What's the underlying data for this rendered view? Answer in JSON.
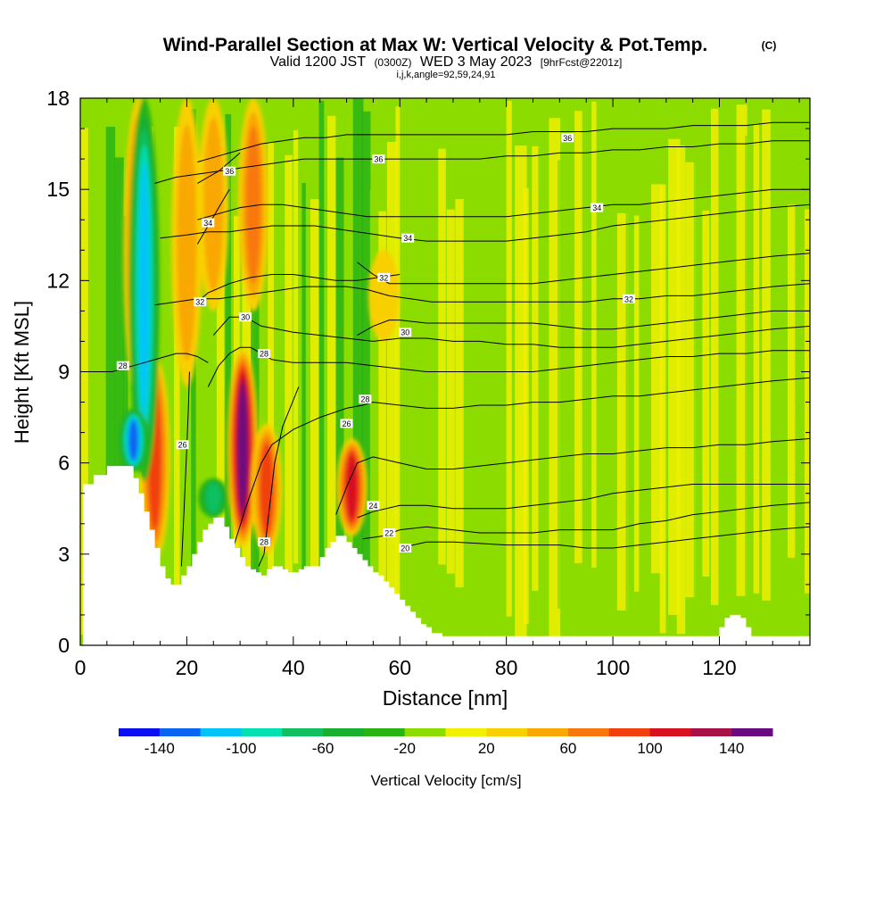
{
  "header": {
    "title": "Wind-Parallel Section at Max W: Vertical Velocity & Pot.Temp.",
    "copyright": "(C)",
    "valid_prefix": "Valid 1200 JST",
    "valid_zulu": "(0300Z)",
    "valid_date": "WED 3 May 2023",
    "forecast": "[9hrFcst@2201z]",
    "section_params": "i,j,k,angle=92,59,24,91"
  },
  "chart_data": {
    "type": "heatmap",
    "title": "Wind-Parallel Section at Max W: Vertical Velocity & Pot.Temp.",
    "xlabel": "Distance [nm]",
    "ylabel": "Height [Kft MSL]",
    "xlim": [
      0,
      137
    ],
    "ylim": [
      0,
      18
    ],
    "x_ticks": [
      "0",
      "20",
      "40",
      "60",
      "80",
      "100",
      "120"
    ],
    "y_ticks": [
      "0",
      "3",
      "6",
      "9",
      "12",
      "15",
      "18"
    ],
    "grid": false,
    "colorbar": {
      "label": "Vertical Velocity [cm/s]",
      "tick_labels": [
        "-140",
        "-100",
        "-60",
        "-20",
        "20",
        "60",
        "100",
        "140"
      ],
      "bounds": [
        -160,
        -140,
        -120,
        -100,
        -80,
        -60,
        -40,
        -20,
        0,
        20,
        40,
        60,
        80,
        100,
        120,
        140,
        160
      ],
      "colors": [
        "#0a10f0",
        "#0a66f0",
        "#00c4f8",
        "#00e0b0",
        "#10c060",
        "#18b030",
        "#2ab414",
        "#8cdc00",
        "#f0f000",
        "#f8d000",
        "#f8a800",
        "#f87810",
        "#f04010",
        "#d81020",
        "#a81048",
        "#6a0a80"
      ]
    },
    "background_color": "#8cdc00",
    "updraft_cores": [
      {
        "x": 11,
        "y_bottom": 7.8,
        "y_top": 18,
        "value": 90
      },
      {
        "x": 14,
        "y_bottom": 2.8,
        "y_top": 9.5,
        "value": 80
      },
      {
        "x": 20,
        "y_bottom": 8.5,
        "y_top": 18,
        "value": 40
      },
      {
        "x": 25,
        "y_bottom": 11,
        "y_top": 18,
        "value": 50
      },
      {
        "x": 30.5,
        "y_bottom": 3.2,
        "y_top": 9.8,
        "value": 150
      },
      {
        "x": 32.5,
        "y_bottom": 11,
        "y_top": 18,
        "value": 60
      },
      {
        "x": 35,
        "y_bottom": 3.0,
        "y_top": 7.3,
        "value": 80
      },
      {
        "x": 51,
        "y_bottom": 3.6,
        "y_top": 6.8,
        "value": 110
      },
      {
        "x": 57,
        "y_bottom": 10,
        "y_top": 13,
        "value": 30
      }
    ],
    "downdraft_cores": [
      {
        "x": 12,
        "y_bottom": 5.4,
        "y_top": 18,
        "value": -100
      },
      {
        "x": 10,
        "y_bottom": 5.7,
        "y_top": 7.8,
        "value": -130
      },
      {
        "x": 25,
        "y_bottom": 4.2,
        "y_top": 5.5,
        "value": -60
      }
    ],
    "terrain": {
      "x": [
        0,
        0.5,
        2.5,
        5,
        7,
        10,
        11,
        12,
        13,
        14,
        15,
        16,
        17,
        18,
        19,
        20,
        21,
        22,
        23,
        24,
        25,
        26,
        27,
        28,
        29,
        30,
        31,
        32,
        33,
        34,
        35,
        36,
        37,
        38,
        39,
        40,
        41,
        42,
        43,
        44,
        45,
        46,
        47,
        48,
        49,
        50,
        51,
        52,
        53,
        54,
        55,
        56,
        57,
        58,
        59,
        60,
        61,
        62,
        63,
        64,
        65,
        66,
        68,
        70,
        71,
        118,
        119,
        120,
        121,
        122,
        123,
        124,
        125,
        126,
        127,
        128,
        130,
        137
      ],
      "y": [
        0,
        5.3,
        5.6,
        5.9,
        5.9,
        5.5,
        5.0,
        4.4,
        3.8,
        3.2,
        2.6,
        2.2,
        2.0,
        2.0,
        2.3,
        2.6,
        3.0,
        3.4,
        3.8,
        4.0,
        4.2,
        4.2,
        3.9,
        3.5,
        3.2,
        2.9,
        2.6,
        2.5,
        2.4,
        2.3,
        2.5,
        2.6,
        2.6,
        2.5,
        2.4,
        2.4,
        2.5,
        2.6,
        2.6,
        2.6,
        2.9,
        3.2,
        3.4,
        3.6,
        3.6,
        3.4,
        3.2,
        3.0,
        2.8,
        2.6,
        2.4,
        2.3,
        2.1,
        1.9,
        1.7,
        1.5,
        1.3,
        1.1,
        0.9,
        0.7,
        0.6,
        0.4,
        0.3,
        0.3,
        0.3,
        0.3,
        0.3,
        0.6,
        0.9,
        1.0,
        1.0,
        0.9,
        0.6,
        0.3,
        0.3,
        0.3,
        0.3,
        0.3
      ],
      "color": "#ffffff"
    },
    "isentropes": [
      {
        "label": "20",
        "x": [
          60,
          65,
          70,
          75,
          80,
          85,
          90,
          95,
          100,
          105,
          110,
          115,
          120,
          125,
          130,
          137
        ],
        "y": [
          3.2,
          3.4,
          3.4,
          3.35,
          3.3,
          3.3,
          3.3,
          3.2,
          3.2,
          3.3,
          3.4,
          3.5,
          3.6,
          3.7,
          3.8,
          3.9
        ],
        "label_at": [
          61,
          3.2
        ]
      },
      {
        "label": "22",
        "x": [
          53,
          57,
          60,
          65,
          70,
          75,
          80,
          85,
          90,
          95,
          100,
          105,
          110,
          115,
          120,
          125,
          130,
          137
        ],
        "y": [
          3.5,
          3.6,
          3.8,
          3.9,
          3.8,
          3.7,
          3.7,
          3.7,
          3.8,
          3.8,
          3.8,
          4.0,
          4.1,
          4.3,
          4.4,
          4.5,
          4.6,
          4.7
        ],
        "label_at": [
          58,
          3.7
        ]
      },
      {
        "label": "24",
        "x": [
          52,
          55,
          60,
          65,
          70,
          75,
          80,
          85,
          90,
          95,
          100,
          105,
          110,
          115,
          120,
          125,
          130,
          137
        ],
        "y": [
          4.2,
          4.4,
          4.6,
          4.6,
          4.5,
          4.5,
          4.5,
          4.6,
          4.7,
          4.8,
          5.0,
          5.1,
          5.2,
          5.3,
          5.3,
          5.3,
          5.3,
          5.3
        ],
        "label_at": [
          55,
          4.6
        ]
      },
      {
        "label": "26",
        "x": [
          48,
          50,
          52,
          55,
          60,
          65,
          70,
          75,
          80,
          85,
          90,
          95,
          100,
          105,
          110,
          115,
          120,
          125,
          130,
          137
        ],
        "y": [
          4.3,
          5.2,
          6.0,
          6.2,
          6.0,
          5.8,
          5.8,
          5.9,
          6.0,
          6.1,
          6.2,
          6.3,
          6.3,
          6.4,
          6.5,
          6.5,
          6.6,
          6.6,
          6.7,
          6.8
        ],
        "label_at": [
          50,
          7.3
        ]
      },
      {
        "label": "28",
        "x": [
          28,
          31,
          34,
          36,
          40,
          45,
          50,
          53,
          55,
          60,
          65,
          70,
          75,
          80,
          85,
          90,
          95,
          100,
          105,
          110,
          115,
          120,
          125,
          130,
          137
        ],
        "y": [
          2.8,
          4.5,
          6.0,
          6.6,
          7.1,
          7.5,
          7.8,
          7.9,
          8.0,
          7.9,
          7.8,
          7.8,
          7.9,
          7.9,
          8.0,
          8.0,
          8.1,
          8.2,
          8.2,
          8.3,
          8.4,
          8.5,
          8.6,
          8.7,
          8.8
        ],
        "label_at": [
          53.5,
          8.1
        ]
      },
      {
        "label": "28",
        "x": [
          24,
          26,
          28,
          30,
          32,
          34,
          36,
          40,
          45,
          50,
          55,
          60,
          65,
          70,
          75,
          80,
          85,
          90,
          95,
          100,
          105,
          110,
          115,
          120,
          125,
          130,
          137
        ],
        "y": [
          8.5,
          9.2,
          9.6,
          9.8,
          9.8,
          9.6,
          9.4,
          9.3,
          9.3,
          9.3,
          9.2,
          9.1,
          9.0,
          9.0,
          9.0,
          9.0,
          9.0,
          9.1,
          9.2,
          9.3,
          9.4,
          9.5,
          9.5,
          9.6,
          9.6,
          9.7,
          9.7
        ],
        "label_at": [
          34.5,
          9.6
        ]
      },
      {
        "label": "30",
        "x": [
          25,
          28,
          31,
          34,
          37,
          40,
          45,
          50,
          55,
          60,
          65,
          70,
          75,
          80,
          85,
          90,
          95,
          100,
          105,
          110,
          115,
          120,
          125,
          130,
          137
        ],
        "y": [
          10.2,
          10.8,
          10.8,
          10.5,
          10.4,
          10.3,
          10.2,
          10.1,
          10.0,
          10.1,
          10.1,
          10.0,
          10.0,
          9.9,
          9.9,
          9.8,
          9.8,
          9.8,
          9.9,
          10.0,
          10.1,
          10.2,
          10.3,
          10.4,
          10.5
        ],
        "label_at": [
          31,
          10.8
        ]
      },
      {
        "label": "30",
        "x": [
          52,
          55,
          58,
          60,
          65,
          70,
          75,
          80,
          85,
          90,
          95,
          100,
          105,
          110,
          115,
          120,
          125,
          130,
          137
        ],
        "y": [
          10.2,
          10.5,
          10.7,
          10.7,
          10.6,
          10.6,
          10.6,
          10.6,
          10.6,
          10.5,
          10.4,
          10.4,
          10.5,
          10.6,
          10.7,
          10.8,
          10.9,
          11.0,
          11.0
        ],
        "label_at": [
          61,
          10.3
        ]
      },
      {
        "label": "32",
        "x": [
          14,
          18,
          22,
          26,
          30,
          34,
          38,
          42,
          46,
          50,
          54,
          58,
          62,
          66,
          70,
          75,
          80,
          85,
          90,
          95,
          100,
          105,
          110,
          115,
          120,
          125,
          130,
          137
        ],
        "y": [
          11.2,
          11.3,
          11.4,
          11.4,
          11.5,
          11.6,
          11.7,
          11.8,
          11.8,
          11.8,
          11.7,
          11.5,
          11.4,
          11.3,
          11.3,
          11.3,
          11.3,
          11.3,
          11.3,
          11.3,
          11.4,
          11.4,
          11.5,
          11.5,
          11.6,
          11.7,
          11.8,
          11.9
        ],
        "label_at": [
          103,
          11.4
        ]
      },
      {
        "label": "32",
        "x": [
          22,
          24,
          28,
          32,
          36,
          40,
          44,
          48,
          52,
          56,
          60
        ],
        "y": [
          11.3,
          11.6,
          11.9,
          12.1,
          12.2,
          12.2,
          12.1,
          12.0,
          12.0,
          12.1,
          12.2
        ],
        "label_at": [
          22.5,
          11.3
        ]
      },
      {
        "label": "32",
        "x": [
          52,
          55,
          58,
          62,
          66,
          70,
          75,
          80,
          85,
          90,
          95,
          100,
          105,
          110,
          115,
          120,
          125,
          130,
          137
        ],
        "y": [
          12.6,
          12.2,
          11.9,
          11.9,
          11.9,
          11.9,
          11.9,
          11.9,
          11.9,
          12.0,
          12.1,
          12.2,
          12.3,
          12.4,
          12.5,
          12.6,
          12.7,
          12.8,
          12.9
        ],
        "label_at": [
          57,
          12.1
        ]
      },
      {
        "label": "34",
        "x": [
          15,
          20,
          24,
          28,
          32,
          36,
          40,
          44,
          48,
          52,
          56,
          60,
          65,
          70,
          75,
          80,
          85,
          90,
          95,
          100,
          105,
          110,
          115,
          120,
          125,
          130,
          137
        ],
        "y": [
          13.4,
          13.5,
          13.6,
          13.6,
          13.7,
          13.8,
          13.8,
          13.8,
          13.7,
          13.6,
          13.5,
          13.4,
          13.3,
          13.3,
          13.3,
          13.3,
          13.4,
          13.5,
          13.6,
          13.8,
          13.9,
          14.0,
          14.1,
          14.2,
          14.3,
          14.4,
          14.5
        ],
        "label_at": [
          61.5,
          13.4
        ]
      },
      {
        "label": "34",
        "x": [
          22,
          26,
          30,
          34,
          38,
          42,
          46,
          50,
          54,
          58,
          62,
          66,
          70,
          75,
          80,
          85,
          90,
          95,
          100,
          105,
          110,
          115,
          120,
          125,
          130,
          137
        ],
        "y": [
          14.0,
          14.2,
          14.4,
          14.5,
          14.5,
          14.4,
          14.3,
          14.2,
          14.1,
          14.1,
          14.1,
          14.1,
          14.1,
          14.1,
          14.1,
          14.2,
          14.3,
          14.4,
          14.5,
          14.5,
          14.6,
          14.7,
          14.8,
          14.9,
          15.0,
          15.0
        ],
        "label_at": [
          97,
          14.4
        ]
      },
      {
        "label": "34",
        "x": [
          22,
          24,
          26,
          28
        ],
        "y": [
          13.2,
          13.8,
          14.4,
          15.0
        ],
        "label_at": [
          24,
          13.9
        ]
      },
      {
        "label": "36",
        "x": [
          14,
          18,
          22,
          26,
          30,
          34,
          38,
          42,
          46,
          50,
          54,
          58,
          62,
          66,
          70,
          75,
          80,
          85,
          90,
          95,
          100,
          105,
          110,
          115,
          120,
          125,
          130,
          137
        ],
        "y": [
          15.2,
          15.4,
          15.5,
          15.6,
          15.7,
          15.8,
          15.9,
          16.0,
          16.0,
          16.0,
          16.0,
          16.0,
          16.0,
          16.0,
          16.0,
          16.0,
          16.1,
          16.1,
          16.2,
          16.2,
          16.3,
          16.3,
          16.4,
          16.4,
          16.5,
          16.5,
          16.6,
          16.6
        ],
        "label_at": [
          56,
          16.0
        ]
      },
      {
        "label": "36",
        "x": [
          22,
          26,
          30,
          34,
          38,
          42,
          46,
          50,
          54,
          58,
          62,
          66,
          70,
          75,
          80,
          85,
          90,
          95,
          100,
          105,
          110,
          115,
          120,
          125,
          130,
          137
        ],
        "y": [
          15.9,
          16.1,
          16.3,
          16.5,
          16.6,
          16.7,
          16.7,
          16.8,
          16.8,
          16.8,
          16.8,
          16.8,
          16.8,
          16.8,
          16.8,
          16.9,
          16.9,
          16.9,
          17.0,
          17.0,
          17.0,
          17.1,
          17.1,
          17.1,
          17.2,
          17.2
        ],
        "label_at": [
          91.5,
          16.7
        ]
      },
      {
        "label": "36",
        "x": [
          22,
          24,
          26,
          28,
          30
        ],
        "y": [
          15.2,
          15.4,
          15.6,
          15.9,
          16.2
        ],
        "label_at": [
          28,
          15.6
        ]
      },
      {
        "label": "26",
        "x": [
          19,
          19.5,
          20,
          20.3,
          20.5
        ],
        "y": [
          2.6,
          4.5,
          6.5,
          7.8,
          9.0
        ],
        "label_at": [
          19.2,
          6.6
        ]
      },
      {
        "label": "28",
        "x": [
          33.5,
          34.5,
          35.5,
          36.5,
          38,
          41
        ],
        "y": [
          2.6,
          3.0,
          4.5,
          6.0,
          7.2,
          8.5
        ],
        "label_at": [
          34.5,
          3.4
        ]
      },
      {
        "label": "28",
        "x": [
          0,
          2,
          4,
          6,
          8,
          10,
          12,
          14,
          16,
          18,
          20,
          22,
          24
        ],
        "y": [
          9.0,
          9.0,
          9.0,
          9.0,
          9.1,
          9.2,
          9.3,
          9.4,
          9.5,
          9.6,
          9.6,
          9.5,
          9.3
        ],
        "label_at": [
          8,
          9.2
        ]
      }
    ]
  }
}
